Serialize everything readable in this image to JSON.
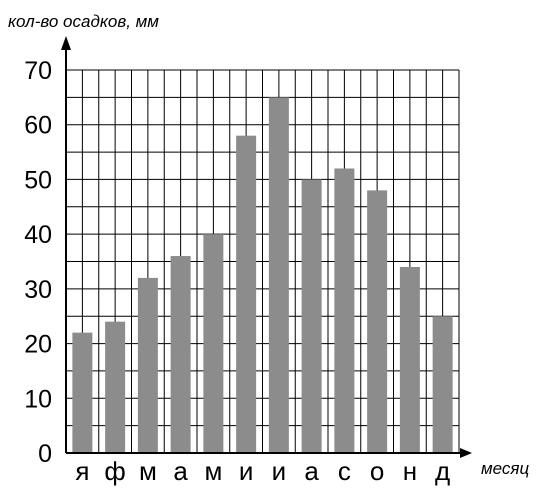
{
  "chart_data": {
    "type": "bar",
    "ylabel": "кол-во осадков, мм",
    "xlabel": "месяц",
    "categories": [
      "я",
      "ф",
      "м",
      "а",
      "м",
      "и",
      "и",
      "а",
      "с",
      "о",
      "н",
      "д"
    ],
    "values": [
      22,
      24,
      32,
      36,
      40,
      58,
      65,
      50,
      52,
      48,
      34,
      25
    ],
    "ylim": [
      0,
      70
    ],
    "yticks": [
      "0",
      "10",
      "20",
      "30",
      "40",
      "50",
      "60",
      "70"
    ],
    "grid": true,
    "colors": {
      "bar": "#8c8c8c",
      "grid": "#000000",
      "axis": "#000000"
    }
  }
}
